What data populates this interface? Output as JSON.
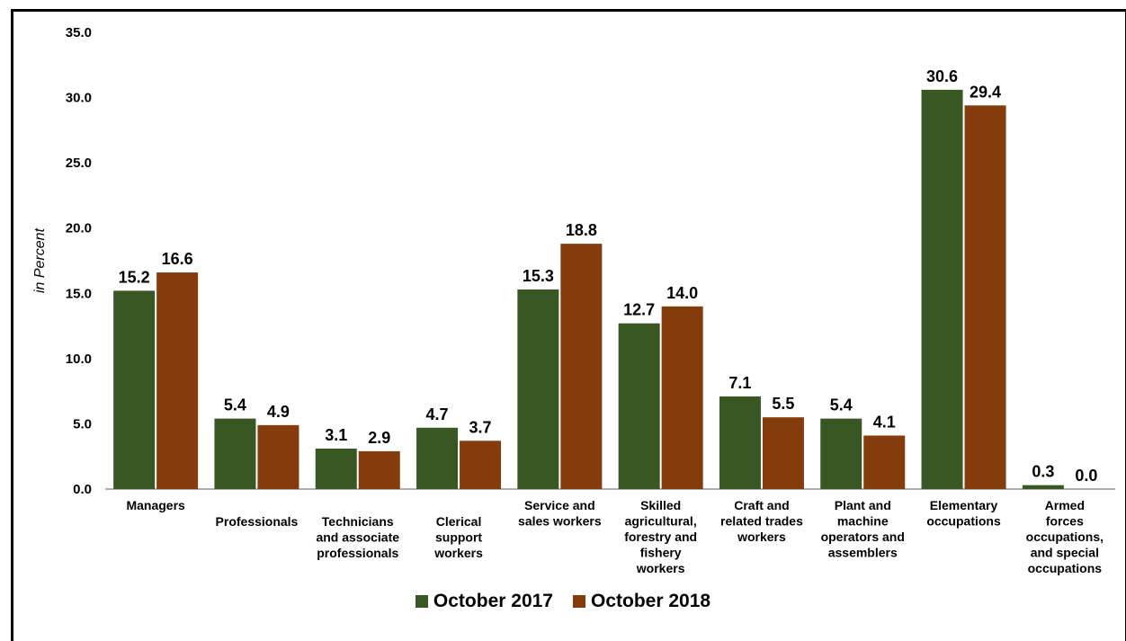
{
  "chart_data": {
    "type": "bar",
    "title": "",
    "ylabel": "in Percent",
    "xlabel": "",
    "ylim": [
      0,
      35
    ],
    "yticks": [
      "0.0",
      "5.0",
      "10.0",
      "15.0",
      "20.0",
      "25.0",
      "30.0",
      "35.0"
    ],
    "categories": [
      [
        "Managers"
      ],
      [
        "Professionals"
      ],
      [
        "Technicians",
        "and associate",
        "professionals"
      ],
      [
        "Clerical",
        "support",
        "workers"
      ],
      [
        "Service and",
        "sales workers"
      ],
      [
        "Skilled",
        "agricultural,",
        "forestry and",
        "fishery",
        "workers"
      ],
      [
        "Craft and",
        "related trades",
        "workers"
      ],
      [
        "Plant and",
        "machine",
        "operators and",
        "assemblers"
      ],
      [
        "Elementary",
        "occupations"
      ],
      [
        "Armed",
        "forces",
        "occupations,",
        "and special",
        "occupations"
      ]
    ],
    "category_offsets": [
      0,
      1,
      1,
      1,
      0,
      0,
      0,
      0,
      0,
      0
    ],
    "series": [
      {
        "name": "October 2017",
        "color": "#385723",
        "values": [
          15.2,
          5.4,
          3.1,
          4.7,
          15.3,
          12.7,
          7.1,
          5.4,
          30.6,
          0.3
        ],
        "labels": [
          "15.2",
          "5.4",
          "3.1",
          "4.7",
          "15.3",
          "12.7",
          "7.1",
          "5.4",
          "30.6",
          "0.3"
        ]
      },
      {
        "name": "October 2018",
        "color": "#843C0C",
        "values": [
          16.6,
          4.9,
          2.9,
          3.7,
          18.8,
          14.0,
          5.5,
          4.1,
          29.4,
          0.0
        ],
        "labels": [
          "16.6",
          "4.9",
          "2.9",
          "3.7",
          "18.8",
          "14.0",
          "5.5",
          "4.1",
          "29.4",
          "0.0"
        ]
      }
    ],
    "legend_position": "bottom",
    "grid": false
  }
}
